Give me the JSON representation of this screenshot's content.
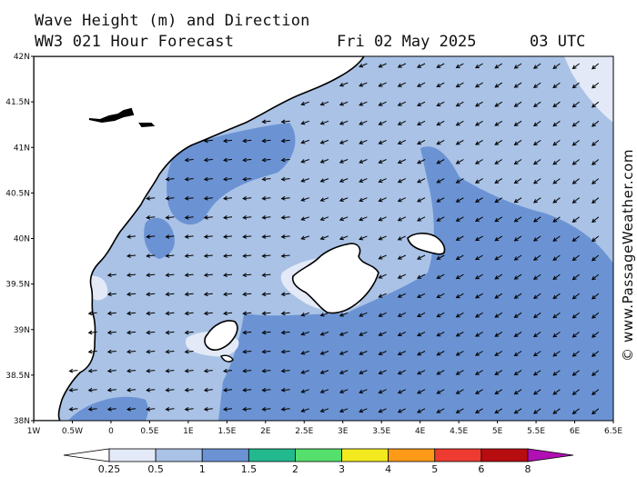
{
  "header": {
    "title_line1": "Wave Height (m) and Direction",
    "title_line2": "WW3 021 Hour Forecast",
    "date": "Fri 02 May 2025",
    "time": "03 UTC"
  },
  "credit": "© www.PassageWeather.com",
  "map": {
    "lat_labels": [
      "42N",
      "41.5N",
      "41N",
      "40.5N",
      "40N",
      "39.5N",
      "39N",
      "38.5N",
      "38N"
    ],
    "lon_labels": [
      "1W",
      "0.5W",
      "0",
      "0.5E",
      "1E",
      "1.5E",
      "2E",
      "2.5E",
      "3E",
      "3.5E",
      "4E",
      "4.5E",
      "5E",
      "5.5E",
      "6E",
      "6.5E"
    ],
    "lat_range": [
      38,
      42
    ],
    "lon_range": [
      -1,
      6.5
    ],
    "arrow_direction": "towards west-northwest",
    "land_color": "#ffffff",
    "coast_color": "#000000"
  },
  "legend": {
    "labels": [
      "0.25",
      "0.5",
      "1",
      "1.5",
      "2",
      "3",
      "4",
      "5",
      "6",
      "8"
    ],
    "colors": [
      "#e3e9f7",
      "#a9c2e6",
      "#6b93d4",
      "#22b98f",
      "#55e06e",
      "#f2ea1e",
      "#ff9a18",
      "#ee3b32",
      "#b80d10",
      "#b10fb4"
    ],
    "left_arrow_color": "#ffffff",
    "unit": "m"
  }
}
